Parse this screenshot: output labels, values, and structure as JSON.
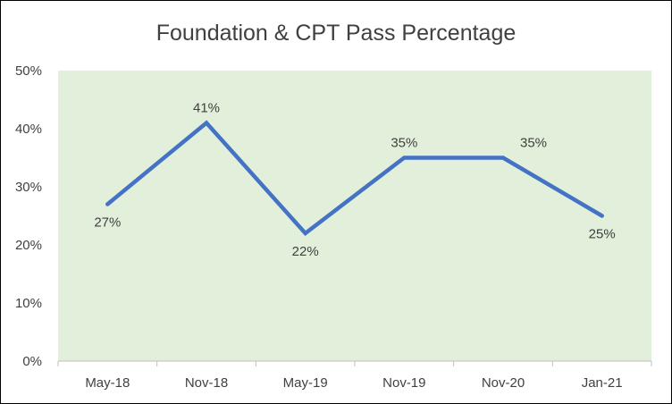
{
  "chart_data": {
    "type": "line",
    "title": "Foundation & CPT Pass Percentage",
    "xlabel": "",
    "ylabel": "",
    "categories": [
      "May-18",
      "Nov-18",
      "May-19",
      "Nov-19",
      "Nov-20",
      "Jan-21"
    ],
    "values": [
      27,
      41,
      22,
      35,
      35,
      25
    ],
    "data_labels": [
      "27%",
      "41%",
      "22%",
      "35%",
      "35%",
      "25%"
    ],
    "ylim": [
      0,
      50
    ],
    "yticks": [
      0,
      10,
      20,
      30,
      40,
      50
    ],
    "ytick_labels": [
      "0%",
      "10%",
      "20%",
      "30%",
      "40%",
      "50%"
    ],
    "grid": false,
    "legend": "none",
    "colors": {
      "line": "#4472C4",
      "plot_background": "#E2EFDA",
      "axis": "#BFBFBF",
      "text": "#404040"
    }
  }
}
